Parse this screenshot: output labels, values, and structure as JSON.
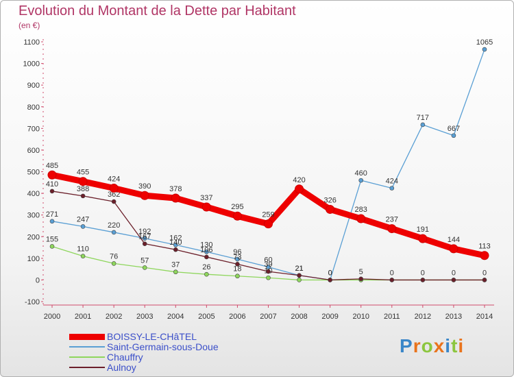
{
  "title": "Evolution du Montant de la Dette par Habitant",
  "unit": "(en €)",
  "brand": "Proxiti",
  "brand_colors": [
    "#3a86c8",
    "#e9731c",
    "#8cc63f",
    "#e9731c",
    "#3a86c8",
    "#8cc63f",
    "#e9731c"
  ],
  "chart_data": {
    "type": "line",
    "title": "Evolution du Montant de la Dette par Habitant",
    "ylabel": "(en €)",
    "xlabel": "",
    "x": [
      "2000",
      "2001",
      "2002",
      "2003",
      "2004",
      "2005",
      "2006",
      "2007",
      "2008",
      "2009",
      "2010",
      "2011",
      "2012",
      "2013",
      "2014"
    ],
    "ylim": [
      -100,
      1100
    ],
    "yticks": [
      "-100",
      "0",
      "100",
      "200",
      "300",
      "400",
      "500",
      "600",
      "700",
      "800",
      "900",
      "1000",
      "1100"
    ],
    "grid": false,
    "legend_position": "bottom-left",
    "series": [
      {
        "name": "Saint-Germain-sous-Doue",
        "color": "#5a9fd4",
        "values": [
          271,
          247,
          220,
          192,
          162,
          130,
          96,
          60,
          21,
          0,
          460,
          424,
          717,
          667,
          1065
        ],
        "labels": [
          "271",
          "247",
          "220",
          "192",
          "162",
          "130",
          "96",
          "60",
          "21",
          "0",
          "460",
          "424",
          "717",
          "667",
          "1065"
        ]
      },
      {
        "name": "Chauffry",
        "color": "#8ed65c",
        "values": [
          155,
          110,
          76,
          57,
          37,
          26,
          18,
          10,
          0,
          0,
          0,
          0,
          0,
          0,
          0
        ],
        "labels": [
          "155",
          "110",
          "76",
          "57",
          "37",
          "26",
          "18",
          "10",
          "",
          "",
          "",
          "",
          "",
          "",
          ""
        ]
      },
      {
        "name": "Aulnoy",
        "color": "#6b1f2a",
        "values": [
          410,
          388,
          362,
          167,
          140,
          106,
          73,
          39,
          21,
          0,
          5,
          0,
          0,
          0,
          0
        ],
        "labels": [
          "410",
          "388",
          "362",
          "167",
          "140",
          "106",
          "73",
          "39",
          "21",
          "0",
          "5",
          "0",
          "0",
          "0",
          "0"
        ]
      },
      {
        "name": "BOISSY-LE-CHâTEL",
        "color": "#ee0000",
        "values": [
          485,
          455,
          424,
          390,
          378,
          337,
          295,
          259,
          420,
          326,
          283,
          237,
          191,
          144,
          113
        ],
        "labels": [
          "485",
          "455",
          "424",
          "390",
          "378",
          "337",
          "295",
          "259",
          "420",
          "326",
          "283",
          "237",
          "191",
          "144",
          "113"
        ]
      }
    ],
    "legend": [
      "BOISSY-LE-CHâTEL",
      "Saint-Germain-sous-Doue",
      "Chauffry",
      "Aulnoy"
    ]
  }
}
